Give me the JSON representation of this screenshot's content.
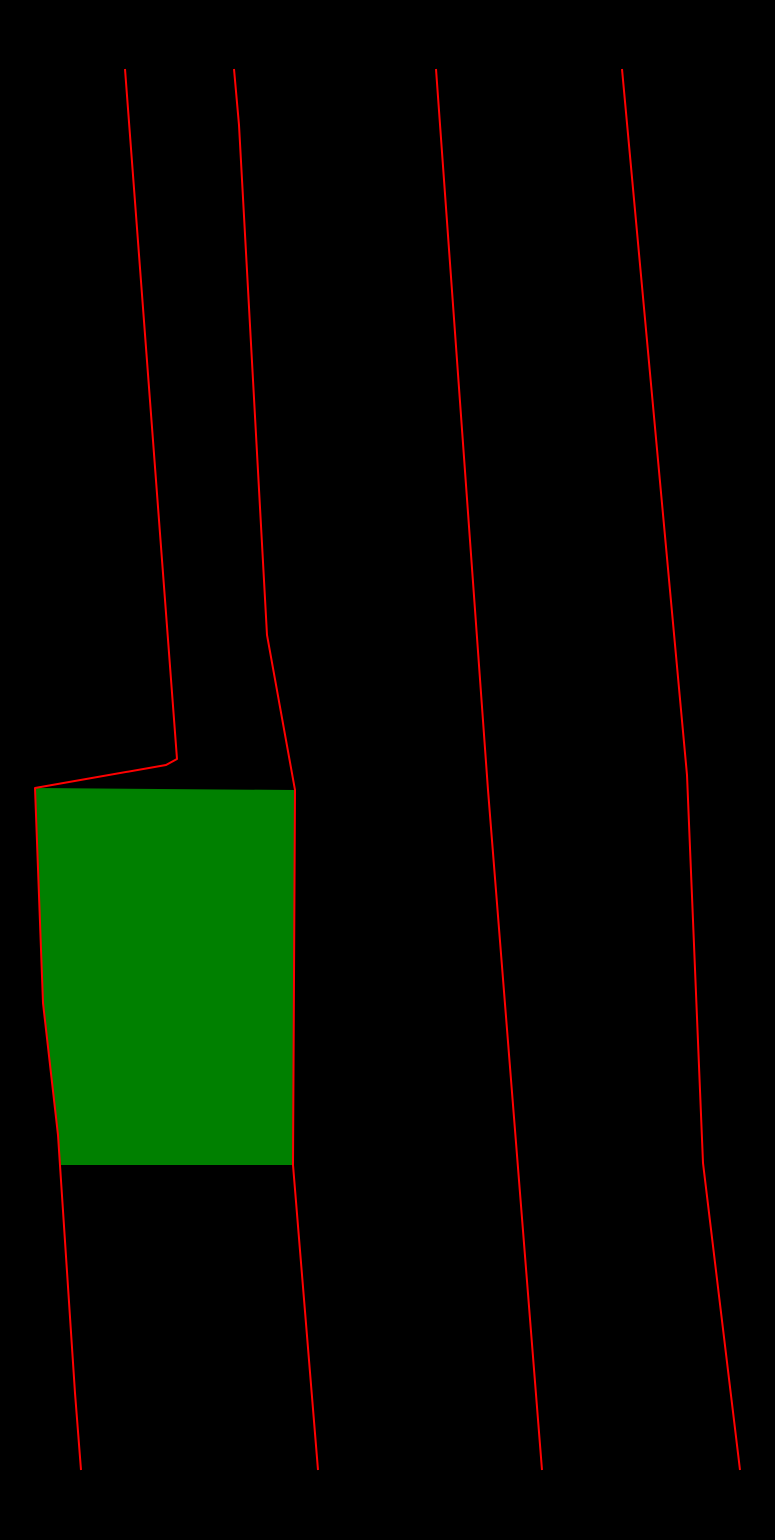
{
  "colors": {
    "background": "#000000",
    "lane_line": "#ff0000",
    "highlight_region": "#008000"
  },
  "diagram": {
    "elements": [
      "lane-line-1",
      "lane-line-2",
      "lane-line-3",
      "lane-line-4",
      "highlighted-region"
    ]
  }
}
